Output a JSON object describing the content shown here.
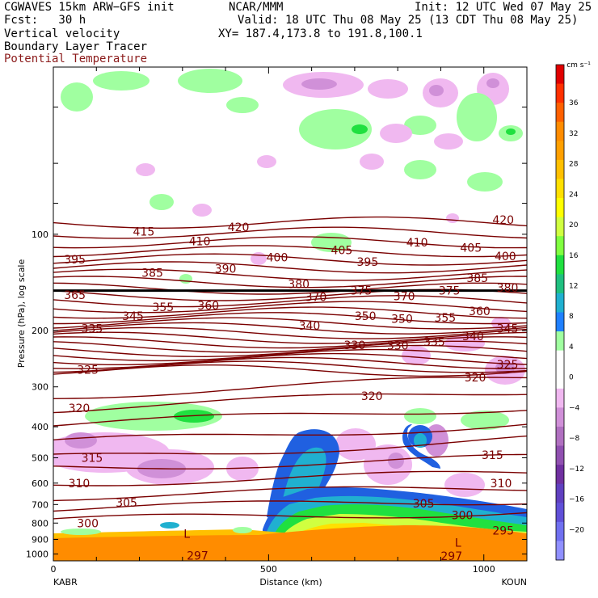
{
  "header": {
    "model": "CGWAVES 15km ARW−GFS init",
    "forecast": "Fcst:   30 h",
    "field1": "Vertical velocity",
    "field2": "Boundary Layer Tracer",
    "field3": "Potential Temperature",
    "org": "NCAR/MMM",
    "init": "Init: 12 UTC Wed 07 May 25",
    "valid": "Valid: 18 UTC Thu 08 May 25 (13 CDT Thu 08 May 25)",
    "xy": "XY= 187.4,173.8 to 191.8,100.1",
    "field3_color": "#8b1a1a"
  },
  "chart_data": {
    "type": "heatmap",
    "xlabel": "Distance (km)",
    "ylabel": "Pressure (hPa), log scale",
    "x_ticks": [
      "0",
      "500",
      "1000"
    ],
    "x_tick_values": [
      0,
      500,
      1000
    ],
    "xlim": [
      0,
      1100
    ],
    "y_ticks": [
      "100",
      "200",
      "300",
      "400",
      "500",
      "600",
      "700",
      "800",
      "900",
      "1000"
    ],
    "y_tick_values": [
      100,
      200,
      300,
      400,
      500,
      600,
      700,
      800,
      900,
      1000
    ],
    "ylim": [
      1050,
      30
    ],
    "left_station": "KABR",
    "right_station": "KOUN",
    "theta_labels": [
      {
        "text": "420",
        "x": 430,
        "p": 95
      },
      {
        "text": "415",
        "x": 210,
        "p": 98
      },
      {
        "text": "420",
        "x": 1045,
        "p": 90
      },
      {
        "text": "410",
        "x": 340,
        "p": 105
      },
      {
        "text": "410",
        "x": 845,
        "p": 106
      },
      {
        "text": "405",
        "x": 970,
        "p": 110
      },
      {
        "text": "405",
        "x": 670,
        "p": 112
      },
      {
        "text": "400",
        "x": 520,
        "p": 118
      },
      {
        "text": "400",
        "x": 1050,
        "p": 117
      },
      {
        "text": "395",
        "x": 50,
        "p": 120
      },
      {
        "text": "395",
        "x": 730,
        "p": 122
      },
      {
        "text": "390",
        "x": 400,
        "p": 128
      },
      {
        "text": "385",
        "x": 230,
        "p": 132
      },
      {
        "text": "385",
        "x": 985,
        "p": 137
      },
      {
        "text": "380",
        "x": 570,
        "p": 143
      },
      {
        "text": "380",
        "x": 1055,
        "p": 147
      },
      {
        "text": "375",
        "x": 715,
        "p": 150
      },
      {
        "text": "375",
        "x": 920,
        "p": 150
      },
      {
        "text": "370",
        "x": 610,
        "p": 157
      },
      {
        "text": "370",
        "x": 815,
        "p": 156
      },
      {
        "text": "365",
        "x": 50,
        "p": 155
      },
      {
        "text": "360",
        "x": 360,
        "p": 167
      },
      {
        "text": "360",
        "x": 990,
        "p": 174
      },
      {
        "text": "355",
        "x": 255,
        "p": 169
      },
      {
        "text": "355",
        "x": 910,
        "p": 182
      },
      {
        "text": "350",
        "x": 725,
        "p": 180
      },
      {
        "text": "350",
        "x": 810,
        "p": 184
      },
      {
        "text": "345",
        "x": 185,
        "p": 180
      },
      {
        "text": "345",
        "x": 1055,
        "p": 197
      },
      {
        "text": "340",
        "x": 595,
        "p": 193
      },
      {
        "text": "340",
        "x": 975,
        "p": 208
      },
      {
        "text": "335",
        "x": 90,
        "p": 197
      },
      {
        "text": "335",
        "x": 885,
        "p": 217
      },
      {
        "text": "330",
        "x": 700,
        "p": 222
      },
      {
        "text": "330",
        "x": 800,
        "p": 223
      },
      {
        "text": "325",
        "x": 80,
        "p": 265
      },
      {
        "text": "325",
        "x": 1055,
        "p": 255
      },
      {
        "text": "320",
        "x": 980,
        "p": 280
      },
      {
        "text": "320",
        "x": 740,
        "p": 320
      },
      {
        "text": "320",
        "x": 60,
        "p": 350
      },
      {
        "text": "315",
        "x": 90,
        "p": 500
      },
      {
        "text": "315",
        "x": 1020,
        "p": 490
      },
      {
        "text": "310",
        "x": 60,
        "p": 600
      },
      {
        "text": "310",
        "x": 1040,
        "p": 600
      },
      {
        "text": "305",
        "x": 170,
        "p": 690
      },
      {
        "text": "305",
        "x": 860,
        "p": 695
      },
      {
        "text": "300",
        "x": 80,
        "p": 800
      },
      {
        "text": "300",
        "x": 950,
        "p": 755
      },
      {
        "text": "295",
        "x": 1045,
        "p": 845
      },
      {
        "text": "297",
        "x": 335,
        "p": 1010
      },
      {
        "text": "297",
        "x": 925,
        "p": 1015
      },
      {
        "text": "L",
        "x": 310,
        "p": 865
      },
      {
        "text": "L",
        "x": 940,
        "p": 920
      }
    ],
    "colorbar": {
      "unit": "cm s⁻¹",
      "tick_labels": [
        "36",
        "32",
        "28",
        "24",
        "20",
        "16",
        "12",
        "8",
        "4",
        "0",
        "−4",
        "−8",
        "−12",
        "−16",
        "−20"
      ],
      "colors": [
        "#e00000",
        "#ff3000",
        "#ff6000",
        "#ff8c00",
        "#ffa000",
        "#ffc000",
        "#ffe000",
        "#ffff00",
        "#d0ff40",
        "#80ff40",
        "#20e040",
        "#20c080",
        "#20b0d0",
        "#2080ff",
        "#a0ffa0",
        "#ffffff",
        "#ffffff",
        "#f0b8f0",
        "#d090d8",
        "#b070c0",
        "#9050b0",
        "#7030a0",
        "#6040c0",
        "#6050d8",
        "#7070f0",
        "#9090ff"
      ]
    }
  }
}
